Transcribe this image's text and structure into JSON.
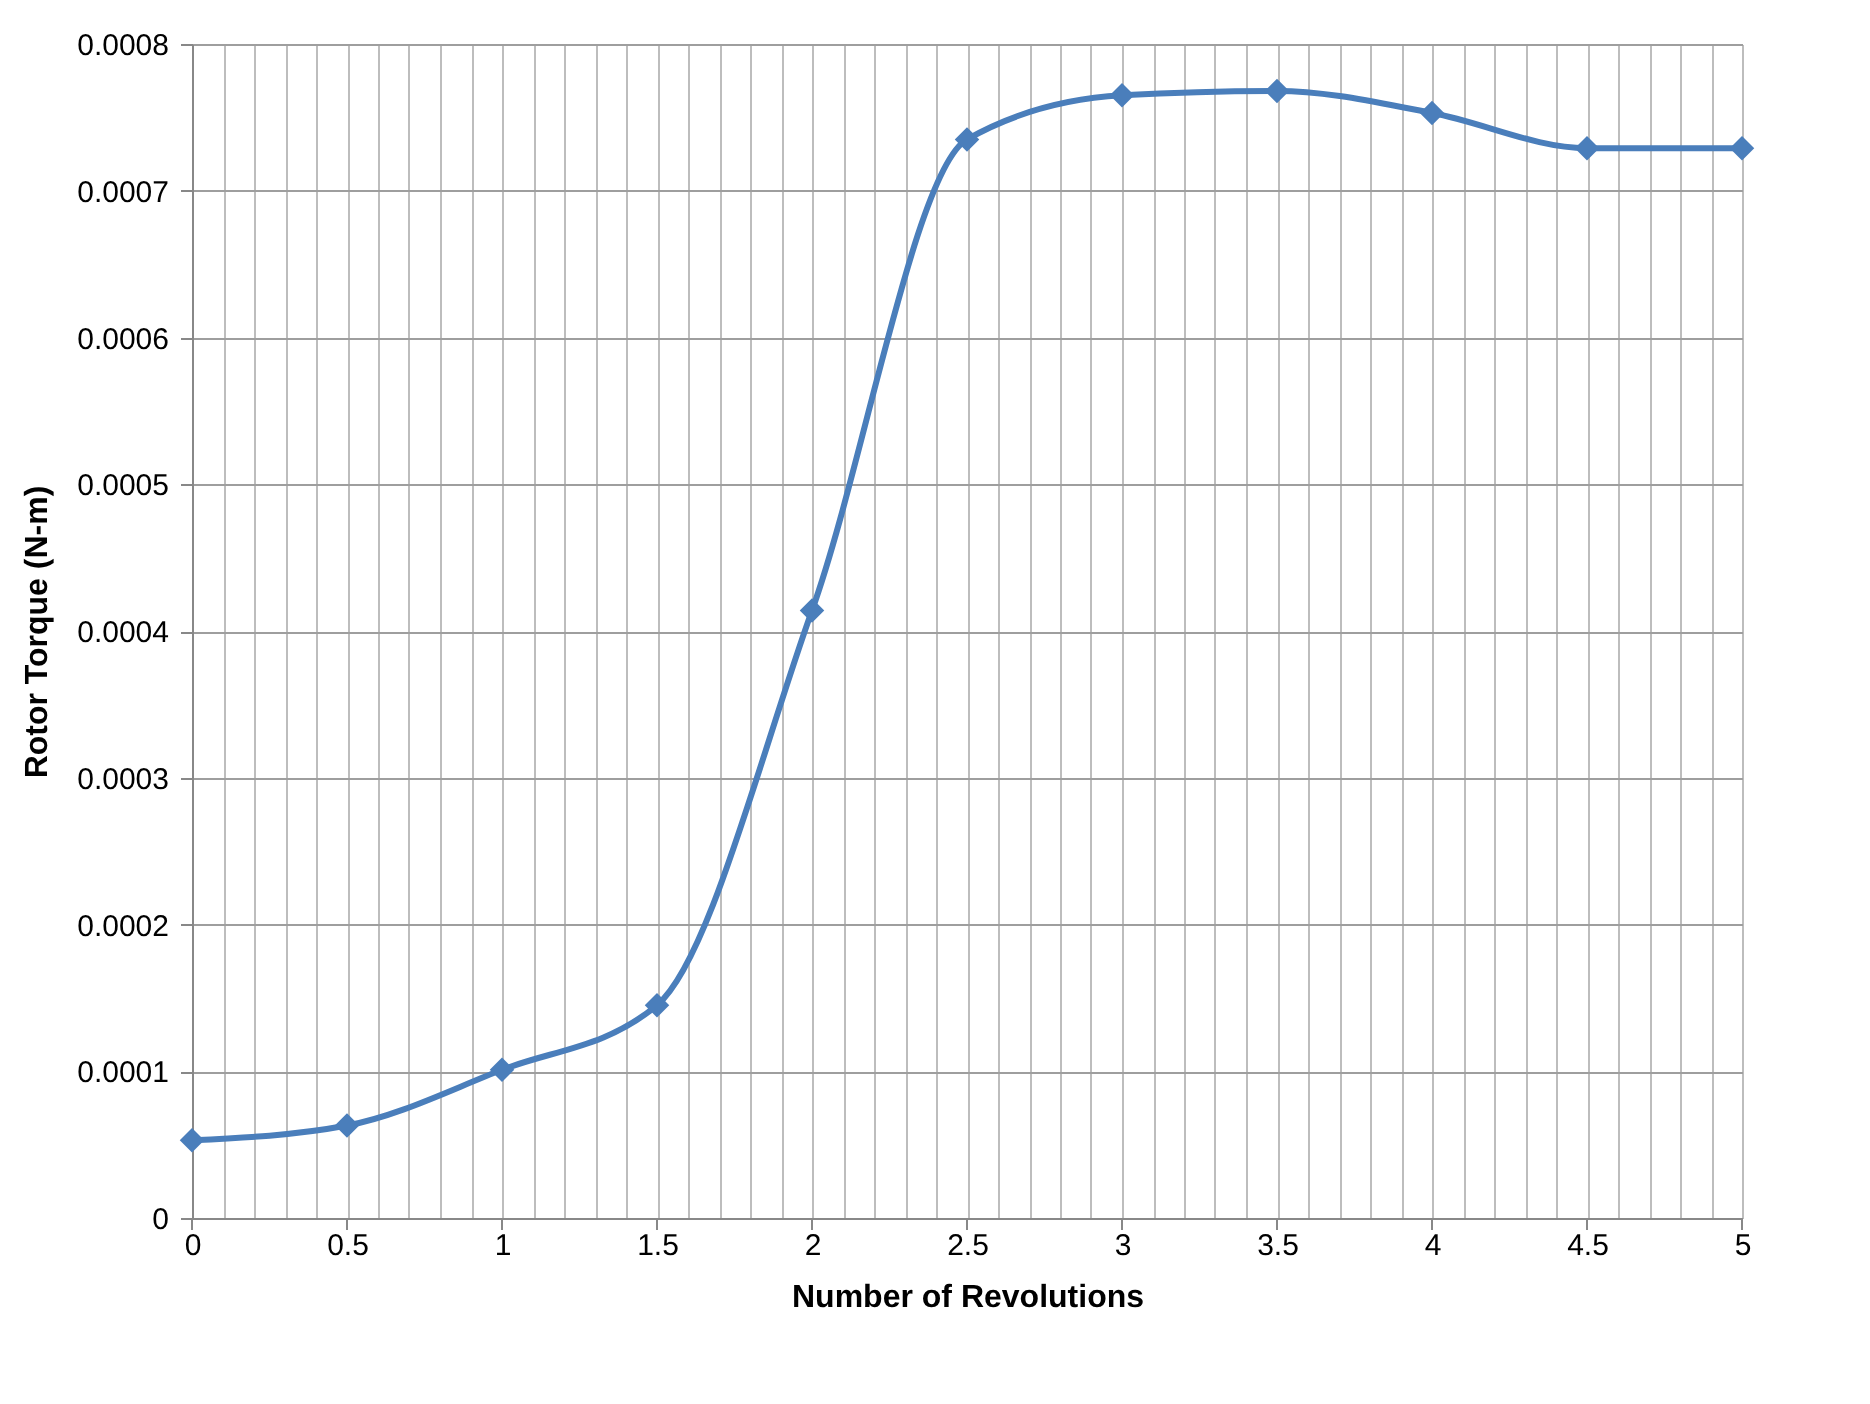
{
  "chart_data": {
    "type": "line",
    "xlabel": "Number of Revolutions",
    "ylabel": "Rotor Torque (N-m)",
    "x": [
      0,
      0.5,
      1,
      1.5,
      2,
      2.5,
      3,
      3.5,
      4,
      4.5,
      5
    ],
    "series": [
      {
        "color": "#4a7ebb",
        "values": [
          5.3e-05,
          6.3e-05,
          0.000101,
          0.000145,
          0.000414,
          0.000735,
          0.000765,
          0.000768,
          0.000753,
          0.000729,
          0.000729
        ]
      }
    ],
    "xlim": [
      0,
      5
    ],
    "xticks": [
      0,
      {
        "value": 0.1,
        "label": null
      },
      {
        "value": 0.2,
        "label": null
      },
      {
        "value": 0.3,
        "label": null
      },
      {
        "value": 0.4,
        "label": null
      },
      0.5,
      {
        "value": 0.6,
        "label": null
      },
      {
        "value": 0.7,
        "label": null
      },
      {
        "value": 0.8,
        "label": null
      },
      {
        "value": 0.9,
        "label": null
      },
      1,
      {
        "value": 1.1,
        "label": null
      },
      {
        "value": 1.2,
        "label": null
      },
      {
        "value": 1.3,
        "label": null
      },
      {
        "value": 1.4,
        "label": null
      },
      1.5,
      {
        "value": 1.6,
        "label": null
      },
      {
        "value": 1.7,
        "label": null
      },
      {
        "value": 1.8,
        "label": null
      },
      {
        "value": 1.9,
        "label": null
      },
      2,
      {
        "value": 2.1,
        "label": null
      },
      {
        "value": 2.2,
        "label": null
      },
      {
        "value": 2.3,
        "label": null
      },
      {
        "value": 2.4,
        "label": null
      },
      2.5,
      {
        "value": 2.6,
        "label": null
      },
      {
        "value": 2.7,
        "label": null
      },
      {
        "value": 2.8,
        "label": null
      },
      {
        "value": 2.9,
        "label": null
      },
      3,
      {
        "value": 3.1,
        "label": null
      },
      {
        "value": 3.2,
        "label": null
      },
      {
        "value": 3.3,
        "label": null
      },
      {
        "value": 3.4,
        "label": null
      },
      3.5,
      {
        "value": 3.6,
        "label": null
      },
      {
        "value": 3.7,
        "label": null
      },
      {
        "value": 3.8,
        "label": null
      },
      {
        "value": 3.9,
        "label": null
      },
      4,
      {
        "value": 4.1,
        "label": null
      },
      {
        "value": 4.2,
        "label": null
      },
      {
        "value": 4.3,
        "label": null
      },
      {
        "value": 4.4,
        "label": null
      },
      4.5,
      {
        "value": 4.6,
        "label": null
      },
      {
        "value": 4.7,
        "label": null
      },
      {
        "value": 4.8,
        "label": null
      },
      {
        "value": 4.9,
        "label": null
      },
      5
    ],
    "ylim": [
      0,
      0.0008
    ],
    "yticks": [
      0,
      0.0001,
      0.0002,
      0.0003,
      0.0004,
      0.0005,
      0.0006,
      0.0007,
      0.0008
    ],
    "grid": true,
    "marker": "diamond",
    "line_style": "solid"
  }
}
